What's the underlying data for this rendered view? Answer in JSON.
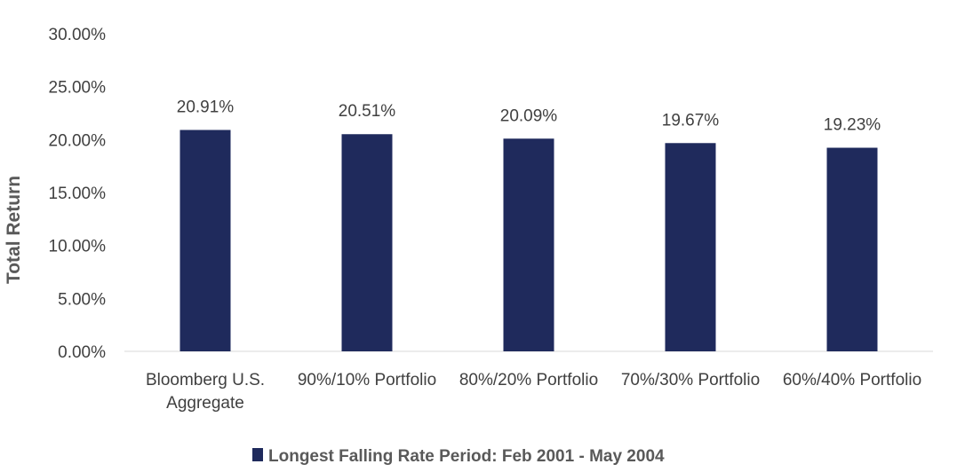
{
  "chart_data": {
    "type": "bar",
    "categories": [
      "Bloomberg U.S. Aggregate",
      "90%/10% Portfolio",
      "80%/20% Portfolio",
      "70%/30% Portfolio",
      "60%/40% Portfolio"
    ],
    "category_lines": [
      [
        "Bloomberg U.S.",
        "Aggregate"
      ],
      [
        "90%/10% Portfolio"
      ],
      [
        "80%/20% Portfolio"
      ],
      [
        "70%/30% Portfolio"
      ],
      [
        "60%/40% Portfolio"
      ]
    ],
    "series": [
      {
        "name": "Longest Falling Rate Period: Feb 2001 - May 2004",
        "values": [
          20.91,
          20.51,
          20.09,
          19.67,
          19.23
        ],
        "color": "#1f2a5c"
      }
    ],
    "data_labels": [
      "20.91%",
      "20.51%",
      "20.09%",
      "19.67%",
      "19.23%"
    ],
    "ylabel": "Total Return",
    "xlabel": "",
    "ylim": [
      0,
      30
    ],
    "yticks": [
      0,
      5,
      10,
      15,
      20,
      25,
      30
    ],
    "ytick_labels": [
      "0.00%",
      "5.00%",
      "10.00%",
      "15.00%",
      "20.00%",
      "25.00%",
      "30.00%"
    ],
    "grid": false,
    "legend_position": "bottom"
  }
}
